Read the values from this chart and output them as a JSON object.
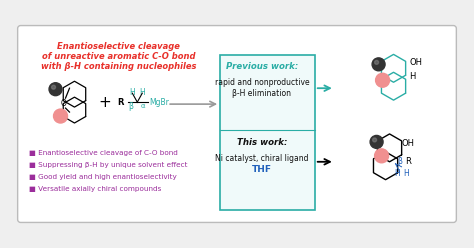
{
  "bg_color": "#efefef",
  "box_bg": "#ffffff",
  "box_border": "#bbbbbb",
  "title_red": "#e8302a",
  "purple_text": "#9b2d9b",
  "teal_color": "#2aada5",
  "blue_text": "#2060bb",
  "black_text": "#111111",
  "arrow_gray": "#999999",
  "pink_color": "#f09090",
  "gray_dark": "#333333",
  "title_text1": "Enantioselective cleavage",
  "title_text2": "of unreactive aromatic C-O bond",
  "title_text3": "with β-H containing nucleophiles",
  "bullet1": "■ Enantioselective cleavage of C-O bond",
  "bullet2": "■ Suppressing β-H by unique solvent effect",
  "bullet3": "■ Good yield and high enantioselectivity",
  "bullet4": "■ Versatile axially chiral compounds",
  "prev_label": "Previous work:",
  "prev_desc1": "rapid and nonproductive",
  "prev_desc2": "β-H elimination",
  "this_label": "This work:",
  "this_desc1": "Ni catalyst, chiral ligand",
  "this_desc2": "THF"
}
